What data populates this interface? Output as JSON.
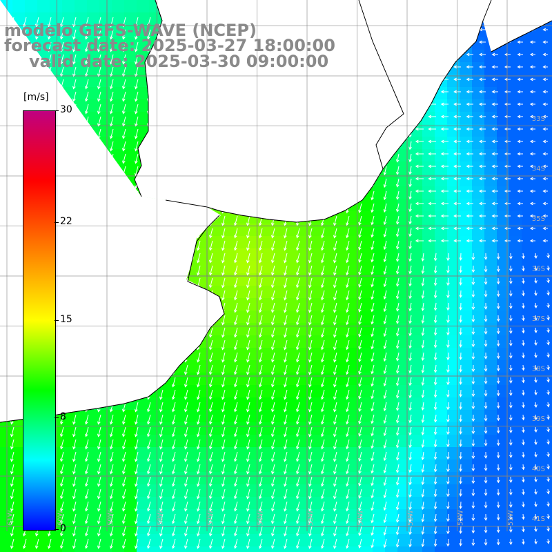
{
  "title": {
    "line1": "modelo GEFS-WAVE (NCEP)",
    "line2": "forecast date: 2025-03-27 18:00:00",
    "line3": "valid date: 2025-03-30 09:00:00"
  },
  "colorbar": {
    "unit": "[m/s]",
    "ticks": [
      "30",
      "22",
      "15",
      "8",
      "0"
    ],
    "tick_values": [
      30,
      22,
      15,
      8,
      0
    ],
    "vmin": 0,
    "vmax": 30,
    "colors": [
      "#0000ff",
      "#00ffff",
      "#00ff00",
      "#ffff00",
      "#ff8000",
      "#ff0000",
      "#c00080"
    ]
  },
  "map": {
    "lat_labels": [
      "33S",
      "34S",
      "35S",
      "36S",
      "37S",
      "38S",
      "39S",
      "40S",
      "41S"
    ],
    "lon_labels": [
      "61W",
      "60W",
      "59W",
      "58W",
      "57W",
      "56W",
      "55W",
      "54W",
      "53W",
      "52W",
      "51W"
    ],
    "land_color": "#ffffff",
    "grid_color": "#808080",
    "coast_color": "#000000"
  }
}
